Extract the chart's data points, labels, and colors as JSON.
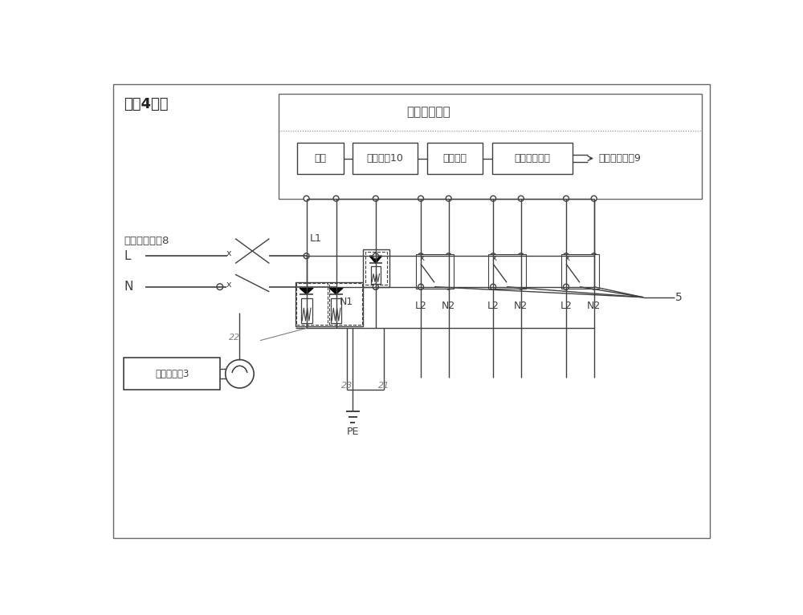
{
  "title_top_left": "箱体4内部",
  "label_input": "输入接线端子8",
  "label_L": "L",
  "label_N": "N",
  "label_L1": "L1",
  "label_N1": "N1",
  "label_PE": "PE",
  "label_22": "22",
  "label_23": "23",
  "label_21": "21",
  "label_5": "5",
  "label_counter": "雷击计数器3",
  "label_aux_module": "辅助电路模块",
  "label_power": "电源",
  "label_indicator": "指示单元10",
  "label_monitor": "监控单元",
  "label_telecom_out": "遥信输出单元",
  "label_telecom_port": "遥信输出端口9",
  "bg_color": "#ffffff",
  "line_color": "#404040",
  "fig_width": 10.0,
  "fig_height": 7.67
}
